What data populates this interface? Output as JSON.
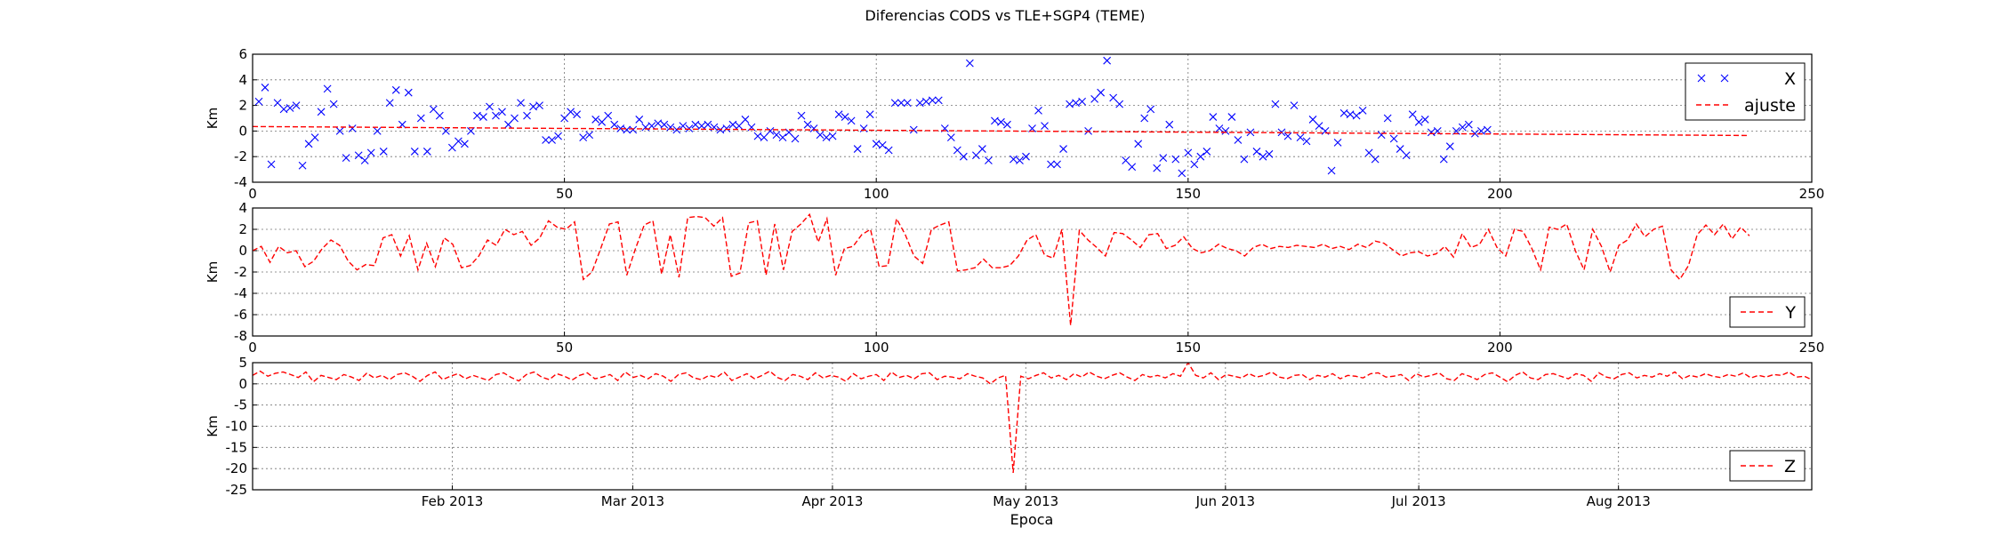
{
  "figure": {
    "title": "Diferencias CODS vs TLE+SGP4 (TEME)",
    "xlabel": "Epoca"
  },
  "chart_data": [
    {
      "type": "scatter",
      "ylabel": "Km",
      "xlim": [
        0,
        250
      ],
      "ylim": [
        -4,
        6
      ],
      "xticks": [
        0,
        50,
        100,
        150,
        200,
        250
      ],
      "yticks": [
        -4,
        -2,
        0,
        2,
        4,
        6
      ],
      "grid": true,
      "legend": "top-right",
      "series": [
        {
          "name": "X",
          "kind": "markers",
          "color": "#0000ff",
          "values": [
            2.3,
            3.4,
            -2.6,
            2.2,
            1.7,
            1.8,
            2.0,
            -2.7,
            -1.0,
            -0.5,
            1.5,
            3.3,
            2.1,
            0,
            -2.1,
            0.2,
            -1.9,
            -2.3,
            -1.7,
            0,
            -1.6,
            2.2,
            3.2,
            0.5,
            3.0,
            -1.6,
            1.0,
            -1.6,
            1.7,
            1.2,
            0,
            -1.3,
            -0.8,
            -1.0,
            0,
            1.2,
            1.1,
            1.9,
            1.2,
            1.5,
            0.5,
            1.0,
            2.2,
            1.2,
            1.9,
            2.0,
            -0.7,
            -0.7,
            -0.4,
            1.0,
            1.5,
            1.3,
            -0.5,
            -0.3,
            0.9,
            0.7,
            1.2,
            0.5,
            0.2,
            0.1,
            0.1,
            0.9,
            0.3,
            0.4,
            0.6,
            0.5,
            0.3,
            0.1,
            0.4,
            0.2,
            0.5,
            0.4,
            0.5,
            0.3,
            0.1,
            0.2,
            0.5,
            0.4,
            0.9,
            0.3,
            -0.4,
            -0.5,
            0,
            -0.3,
            -0.5,
            -0.1,
            -0.6,
            1.2,
            0.5,
            0.2,
            -0.3,
            -0.5,
            -0.4,
            1.3,
            1.1,
            0.8,
            -1.4,
            0.2,
            1.3,
            -1.0,
            -1.1,
            -1.5,
            2.2,
            2.2,
            2.2,
            0.1,
            2.2,
            2.3,
            2.4,
            2.4,
            0.2,
            -0.5,
            -1.5,
            -2.0,
            5.3,
            -1.9,
            -1.4,
            -2.3,
            0.8,
            0.7,
            0.5,
            -2.2,
            -2.3,
            -2.0,
            0.2,
            1.6,
            0.4,
            -2.6,
            -2.6,
            -1.4,
            2.1,
            2.2,
            2.3,
            0,
            2.5,
            3.0,
            5.5,
            2.6,
            2.1,
            -2.3,
            -2.8,
            -1.0,
            1.0,
            1.7,
            -2.9,
            -2.1,
            0.5,
            -2.2,
            -3.3,
            -1.7,
            -2.6,
            -2.0,
            -1.6,
            1.1,
            0.2,
            0,
            1.1,
            -0.7,
            -2.2,
            -0.1,
            -1.6,
            -2.0,
            -1.8,
            2.1,
            -0.1,
            -0.4,
            2.0,
            -0.5,
            -0.8,
            0.9,
            0.4,
            0,
            -3.1,
            -0.9,
            1.4,
            1.3,
            1.2,
            1.6,
            -1.7,
            -2.2,
            -0.3,
            1.0,
            -0.6,
            -1.4,
            -1.9,
            1.3,
            0.7,
            0.9,
            -0.1,
            0,
            -2.2,
            -1.2,
            0,
            0.3,
            0.5,
            -0.2,
            0,
            0.1
          ]
        },
        {
          "name": "ajuste",
          "kind": "dashed-line",
          "color": "#ff0000",
          "x": [
            0,
            240
          ],
          "values": [
            0.35,
            -0.35
          ]
        }
      ]
    },
    {
      "type": "line",
      "ylabel": "Km",
      "xlim": [
        0,
        250
      ],
      "ylim": [
        -8,
        4
      ],
      "xticks": [
        0,
        50,
        100,
        150,
        200,
        250
      ],
      "yticks": [
        -8,
        -6,
        -4,
        -2,
        0,
        2,
        4
      ],
      "grid": true,
      "legend": "bottom-right",
      "series": [
        {
          "name": "Y",
          "kind": "dashed-line",
          "color": "#ff0000",
          "values": [
            0,
            0.4,
            -1.1,
            0.4,
            -0.2,
            0,
            -1.5,
            -1.0,
            0.2,
            1.0,
            0.5,
            -1.0,
            -1.8,
            -1.3,
            -1.4,
            1.2,
            1.5,
            -0.5,
            1.4,
            -1.8,
            0.7,
            -1.5,
            1.2,
            0.6,
            -1.6,
            -1.4,
            -0.5,
            1.0,
            0.5,
            2.0,
            1.5,
            1.8,
            0.5,
            1.2,
            2.8,
            2.2,
            2.0,
            2.7,
            -2.7,
            -2.0,
            0.2,
            2.5,
            2.7,
            -2.3,
            0.2,
            2.4,
            2.8,
            -2.2,
            1.5,
            -2.5,
            3.1,
            3.2,
            3.1,
            2.3,
            3.1,
            -2.4,
            -2.1,
            2.6,
            2.8,
            -2.3,
            2.5,
            -1.8,
            1.8,
            2.5,
            3.4,
            0.8,
            3.0,
            -2.3,
            0.2,
            0.4,
            1.5,
            2.0,
            -1.5,
            -1.4,
            3.0,
            1.5,
            -0.5,
            -1.2,
            2.0,
            2.4,
            2.7,
            -1.9,
            -1.8,
            -1.6,
            -0.8,
            -1.6,
            -1.6,
            -1.4,
            -0.5,
            1.0,
            1.5,
            -0.4,
            -0.7,
            2.0,
            -7.0,
            1.9,
            1.0,
            0.3,
            -0.5,
            1.7,
            1.6,
            1.0,
            0.3,
            1.5,
            1.6,
            0.2,
            0.5,
            1.3,
            0.2,
            -0.2,
            0,
            0.6,
            0.2,
            0,
            -0.5,
            0.3,
            0.6,
            0.2,
            0.4,
            0.3,
            0.5,
            0.4,
            0.3,
            0.6,
            0.2,
            0.4,
            0.1,
            0.6,
            0.3,
            0.9,
            0.7,
            0.1,
            -0.5,
            -0.2,
            -0.1,
            -0.5,
            -0.3,
            0.4,
            -0.6,
            1.6,
            0.3,
            0.6,
            2.0,
            0.3,
            -0.5,
            2.0,
            1.8,
            0.2,
            -1.8,
            2.2,
            2.0,
            2.5,
            0,
            -1.8,
            2.0,
            0.4,
            -2.0,
            0.5,
            1.0,
            2.5,
            1.3,
            2.0,
            2.3,
            -1.8,
            -2.7,
            -1.4,
            1.5,
            2.4,
            1.5,
            2.5,
            1.1,
            2.2,
            1.4
          ]
        }
      ]
    },
    {
      "type": "line",
      "ylabel": "Km",
      "ylim": [
        -25,
        5
      ],
      "yticks": [
        -25,
        -20,
        -15,
        -10,
        -5,
        0,
        5
      ],
      "xticks": [
        "Feb 2013",
        "Mar 2013",
        "Apr 2013",
        "May 2013",
        "Jun 2013",
        "Jul 2013",
        "Aug 2013"
      ],
      "x_start_date": "2013-01-01",
      "x_end_date": "2013-08-31",
      "grid": true,
      "legend": "bottom-right",
      "series": [
        {
          "name": "Z",
          "kind": "dashed-line",
          "color": "#ff0000",
          "values": [
            2.0,
            3.0,
            1.8,
            2.5,
            2.8,
            2.2,
            1.5,
            2.8,
            0.5,
            2.0,
            1.5,
            1.0,
            2.2,
            1.6,
            0.8,
            2.5,
            1.4,
            2.0,
            1.0,
            2.2,
            2.6,
            1.8,
            0.6,
            2.0,
            2.8,
            1.0,
            1.8,
            2.4,
            1.2,
            2.0,
            1.4,
            0.8,
            2.2,
            2.6,
            1.5,
            0.7,
            2.2,
            2.8,
            1.6,
            1.0,
            2.4,
            1.8,
            0.9,
            2.0,
            2.6,
            1.2,
            1.6,
            2.2,
            0.8,
            2.8,
            1.5,
            2.0,
            1.2,
            2.4,
            1.8,
            0.6,
            2.2,
            2.6,
            1.4,
            1.0,
            2.0,
            1.5,
            2.8,
            0.8,
            1.6,
            2.4,
            1.2,
            2.0,
            3.0,
            1.5,
            0.8,
            2.2,
            1.8,
            1.0,
            2.6,
            1.4,
            2.0,
            1.6,
            0.6,
            2.4,
            1.2,
            1.8,
            2.2,
            0.8,
            2.8,
            1.5,
            2.0,
            1.2,
            2.4,
            2.6,
            1.0,
            1.8,
            1.6,
            1.2,
            2.4,
            1.8,
            1.4,
            0,
            1.4,
            2.0,
            -21.0,
            1.8,
            1.2,
            2.0,
            2.6,
            1.4,
            2.0,
            1.0,
            2.4,
            1.6,
            2.8,
            1.8,
            1.2,
            2.0,
            2.6,
            1.6,
            0.8,
            2.2,
            1.6,
            2.0,
            1.4,
            2.4,
            1.8,
            5.0,
            2.0,
            1.4,
            2.6,
            1.0,
            2.2,
            1.8,
            1.4,
            2.4,
            1.6,
            2.0,
            2.8,
            1.6,
            1.2,
            2.0,
            2.2,
            1.0,
            2.0,
            1.6,
            2.4,
            1.2,
            2.0,
            1.8,
            1.4,
            2.4,
            2.6,
            1.6,
            1.8,
            2.2,
            0.8,
            2.4,
            1.6,
            2.0,
            2.6,
            1.2,
            0.8,
            2.4,
            1.8,
            1.0,
            2.2,
            2.6,
            1.6,
            0.5,
            2.0,
            2.8,
            1.4,
            1.0,
            2.2,
            2.4,
            1.8,
            1.2,
            2.4,
            2.0,
            0.6,
            2.6,
            1.6,
            1.2,
            2.2,
            2.6,
            1.4,
            2.0,
            1.6,
            2.4,
            1.8,
            2.8,
            1.2,
            2.0,
            1.6,
            2.4,
            1.8,
            1.5,
            2.2,
            1.8,
            2.6,
            1.4,
            2.0,
            1.6,
            2.2,
            2.0,
            2.8,
            1.6,
            1.8,
            1.0
          ]
        }
      ]
    }
  ]
}
